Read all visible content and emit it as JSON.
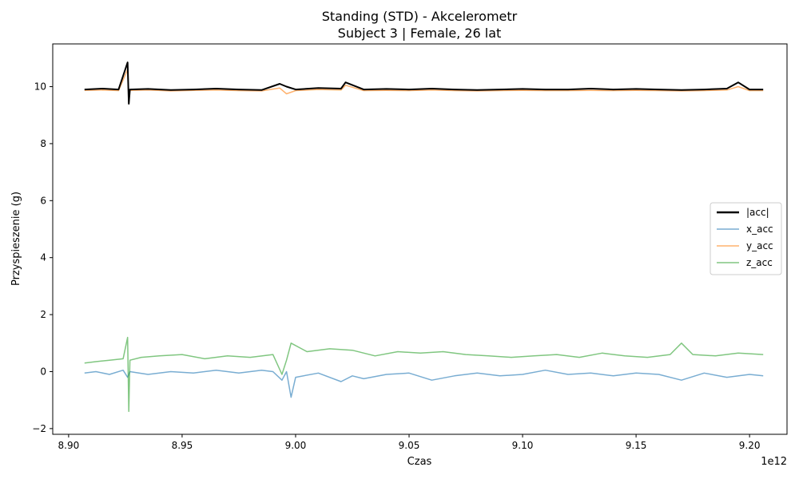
{
  "chart_data": {
    "type": "line",
    "title": "Standing (STD) - Akcelerometr",
    "subtitle": "Subject 3 | Female, 26 lat",
    "xlabel": "Czas",
    "ylabel": "Przyspieszenie (g)",
    "x_offset_label": "1e12",
    "xlim": [
      8.893,
      9.2165
    ],
    "ylim": [
      -2.2,
      11.5
    ],
    "x_ticks": [
      8.9,
      8.95,
      9.0,
      9.05,
      9.1,
      9.15,
      9.2
    ],
    "x_tick_labels": [
      "8.90",
      "8.95",
      "9.00",
      "9.05",
      "9.10",
      "9.15",
      "9.20"
    ],
    "y_ticks": [
      -2,
      0,
      2,
      4,
      6,
      8,
      10
    ],
    "y_tick_labels": [
      "−2",
      "0",
      "2",
      "4",
      "6",
      "8",
      "10"
    ],
    "grid": false,
    "legend_position": "center-right",
    "series": [
      {
        "name": "|acc|",
        "color": "#000000",
        "x": [
          8.907,
          8.915,
          8.922,
          8.926,
          8.9265,
          8.927,
          8.935,
          8.945,
          8.955,
          8.965,
          8.975,
          8.985,
          8.993,
          8.996,
          9.0,
          9.01,
          9.02,
          9.022,
          9.03,
          9.04,
          9.05,
          9.06,
          9.07,
          9.08,
          9.09,
          9.1,
          9.11,
          9.12,
          9.13,
          9.14,
          9.15,
          9.16,
          9.17,
          9.18,
          9.19,
          9.195,
          9.2,
          9.206
        ],
        "y": [
          9.9,
          9.93,
          9.9,
          10.85,
          9.4,
          9.9,
          9.92,
          9.88,
          9.9,
          9.93,
          9.9,
          9.88,
          10.1,
          10.0,
          9.9,
          9.95,
          9.93,
          10.15,
          9.9,
          9.92,
          9.9,
          9.93,
          9.9,
          9.88,
          9.9,
          9.92,
          9.9,
          9.9,
          9.93,
          9.9,
          9.92,
          9.9,
          9.88,
          9.9,
          9.93,
          10.15,
          9.9,
          9.9
        ]
      },
      {
        "name": "x_acc",
        "color": "#1f77b4",
        "x": [
          8.907,
          8.912,
          8.918,
          8.924,
          8.926,
          8.927,
          8.935,
          8.945,
          8.955,
          8.965,
          8.975,
          8.985,
          8.99,
          8.994,
          8.996,
          8.998,
          9.0,
          9.01,
          9.02,
          9.025,
          9.03,
          9.04,
          9.05,
          9.06,
          9.07,
          9.08,
          9.09,
          9.1,
          9.11,
          9.12,
          9.13,
          9.14,
          9.15,
          9.16,
          9.17,
          9.18,
          9.19,
          9.2,
          9.206
        ],
        "y": [
          -0.05,
          0.0,
          -0.1,
          0.05,
          -0.2,
          0.0,
          -0.1,
          0.0,
          -0.05,
          0.05,
          -0.05,
          0.05,
          0.0,
          -0.3,
          0.0,
          -0.9,
          -0.2,
          -0.05,
          -0.35,
          -0.15,
          -0.25,
          -0.1,
          -0.05,
          -0.3,
          -0.15,
          -0.05,
          -0.15,
          -0.1,
          0.05,
          -0.1,
          -0.05,
          -0.15,
          -0.05,
          -0.1,
          -0.3,
          -0.05,
          -0.2,
          -0.1,
          -0.15
        ]
      },
      {
        "name": "y_acc",
        "color": "#ff7f0e",
        "x": [
          8.907,
          8.915,
          8.922,
          8.926,
          8.9265,
          8.927,
          8.935,
          8.945,
          8.955,
          8.965,
          8.975,
          8.985,
          8.993,
          8.996,
          9.0,
          9.01,
          9.02,
          9.022,
          9.03,
          9.04,
          9.05,
          9.06,
          9.07,
          9.08,
          9.09,
          9.1,
          9.11,
          9.12,
          9.13,
          9.14,
          9.15,
          9.16,
          9.17,
          9.18,
          9.19,
          9.195,
          9.2,
          9.206
        ],
        "y": [
          9.87,
          9.88,
          9.86,
          10.6,
          9.5,
          9.87,
          9.88,
          9.85,
          9.87,
          9.88,
          9.86,
          9.85,
          9.95,
          9.75,
          9.86,
          9.9,
          9.88,
          10.05,
          9.86,
          9.87,
          9.86,
          9.88,
          9.86,
          9.85,
          9.86,
          9.87,
          9.86,
          9.86,
          9.87,
          9.86,
          9.87,
          9.86,
          9.85,
          9.86,
          9.88,
          10.0,
          9.86,
          9.86
        ]
      },
      {
        "name": "z_acc",
        "color": "#2ca02c",
        "x": [
          8.907,
          8.912,
          8.918,
          8.924,
          8.926,
          8.9265,
          8.927,
          8.932,
          8.94,
          8.95,
          8.96,
          8.97,
          8.98,
          8.99,
          8.994,
          8.996,
          8.998,
          9.005,
          9.015,
          9.025,
          9.035,
          9.045,
          9.055,
          9.065,
          9.075,
          9.085,
          9.095,
          9.105,
          9.115,
          9.125,
          9.135,
          9.145,
          9.155,
          9.165,
          9.17,
          9.175,
          9.185,
          9.195,
          9.206
        ],
        "y": [
          0.3,
          0.35,
          0.4,
          0.45,
          1.2,
          -1.4,
          0.4,
          0.5,
          0.55,
          0.6,
          0.45,
          0.55,
          0.5,
          0.6,
          -0.1,
          0.4,
          1.0,
          0.7,
          0.8,
          0.75,
          0.55,
          0.7,
          0.65,
          0.7,
          0.6,
          0.55,
          0.5,
          0.55,
          0.6,
          0.5,
          0.65,
          0.55,
          0.5,
          0.6,
          1.0,
          0.6,
          0.55,
          0.65,
          0.6
        ]
      }
    ]
  }
}
